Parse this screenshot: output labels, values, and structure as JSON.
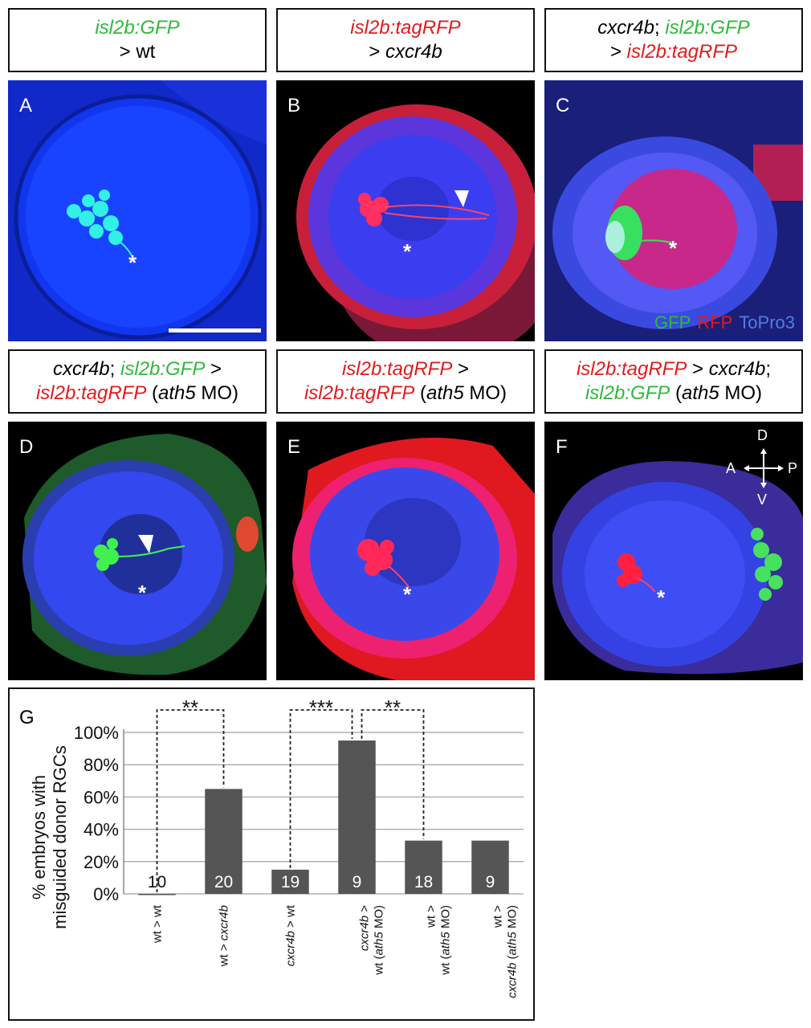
{
  "headers": {
    "A": {
      "line1_geno": "isl2b:GFP",
      "line2": "> wt"
    },
    "B": {
      "line1_geno": "isl2b:tagRFP",
      "line2_prefix": "> ",
      "line2_mut": "cxcr4b"
    },
    "C": {
      "line1_mut": "cxcr4b",
      "line1_sep": "; ",
      "line1_geno": "isl2b:GFP",
      "line2_prefix": "> ",
      "line2_geno": "isl2b:tagRFP"
    },
    "D": {
      "line1_mut": "cxcr4b",
      "line1_sep": "; ",
      "line1_geno": "isl2b:GFP",
      "line1_end": " >",
      "line2_geno": "isl2b:tagRFP",
      "line2_open": " (",
      "line2_mo": "ath5",
      "line2_close": " MO)"
    },
    "E": {
      "line1_geno": "isl2b:tagRFP",
      "line1_end": " >",
      "line2_geno": "isl2b:tagRFP",
      "line2_open": " (",
      "line2_mo": "ath5",
      "line2_close": " MO)"
    },
    "F": {
      "line1_geno": "isl2b:tagRFP",
      "line1_mid": " > ",
      "line1_mut": "cxcr4b",
      "line1_end": ";",
      "line2_geno": "isl2b:GFP",
      "line2_open": " (",
      "line2_mo": "ath5",
      "line2_close": " MO)"
    }
  },
  "panels": {
    "A": "A",
    "B": "B",
    "C": "C",
    "D": "D",
    "E": "E",
    "F": "F",
    "G": "G"
  },
  "markers": {
    "asterisk": "*"
  },
  "legend": {
    "gfp": "GFP",
    "rfp": "RFP",
    "topro": "ToPro3"
  },
  "compass": {
    "d": "D",
    "v": "V",
    "a": "A",
    "p": "P"
  },
  "colors": {
    "gfp": "#2fb83a",
    "rfp": "#e01b1b",
    "topro": "#4f7fe0",
    "bar": "#555555"
  },
  "chart_data": {
    "type": "bar",
    "categories": [
      "wt > wt",
      "wt > cxcr4b",
      "cxcr4b > wt",
      "cxcr4b > wt (ath5 MO)",
      "wt > wt (ath5 MO)",
      "wt > cxcr4b (ath5 MO)"
    ],
    "values": [
      0,
      65,
      15,
      95,
      33,
      33
    ],
    "n_labels": [
      "10",
      "20",
      "19",
      "9",
      "18",
      "9"
    ],
    "ylabel_line1": "% embryos with",
    "ylabel_line2": "misguided donor RGCs",
    "yticks": [
      "0%",
      "20%",
      "40%",
      "60%",
      "80%",
      "100%"
    ],
    "ylim": [
      0,
      100
    ],
    "grid": true,
    "significance": [
      {
        "from": 0,
        "to": 1,
        "label": "**"
      },
      {
        "from": 2,
        "to": 3,
        "label": "***"
      },
      {
        "from": 3,
        "to": 4,
        "label": "**"
      }
    ],
    "xlabels": [
      [
        {
          "t": "wt > wt",
          "i": false
        }
      ],
      [
        {
          "t": "wt > ",
          "i": false
        },
        {
          "t": "cxcr4b",
          "i": true
        }
      ],
      [
        {
          "t": "cxcr4b",
          "i": true
        },
        {
          "t": " > wt",
          "i": false
        }
      ],
      [
        {
          "t": "cxcr4b",
          "i": true
        },
        {
          "t": " >",
          "i": false
        },
        {
          "br": true
        },
        {
          "t": "wt (",
          "i": false
        },
        {
          "t": "ath5",
          "i": true
        },
        {
          "t": " MO)",
          "i": false
        }
      ],
      [
        {
          "t": "wt >",
          "i": false
        },
        {
          "br": true
        },
        {
          "t": "wt (",
          "i": false
        },
        {
          "t": "ath5",
          "i": true
        },
        {
          "t": " MO)",
          "i": false
        }
      ],
      [
        {
          "t": "wt >",
          "i": false
        },
        {
          "br": true
        },
        {
          "t": "cxcr4b",
          "i": true
        },
        {
          "t": " (",
          "i": false
        },
        {
          "t": "ath5",
          "i": true
        },
        {
          "t": " MO)",
          "i": false
        }
      ]
    ]
  }
}
